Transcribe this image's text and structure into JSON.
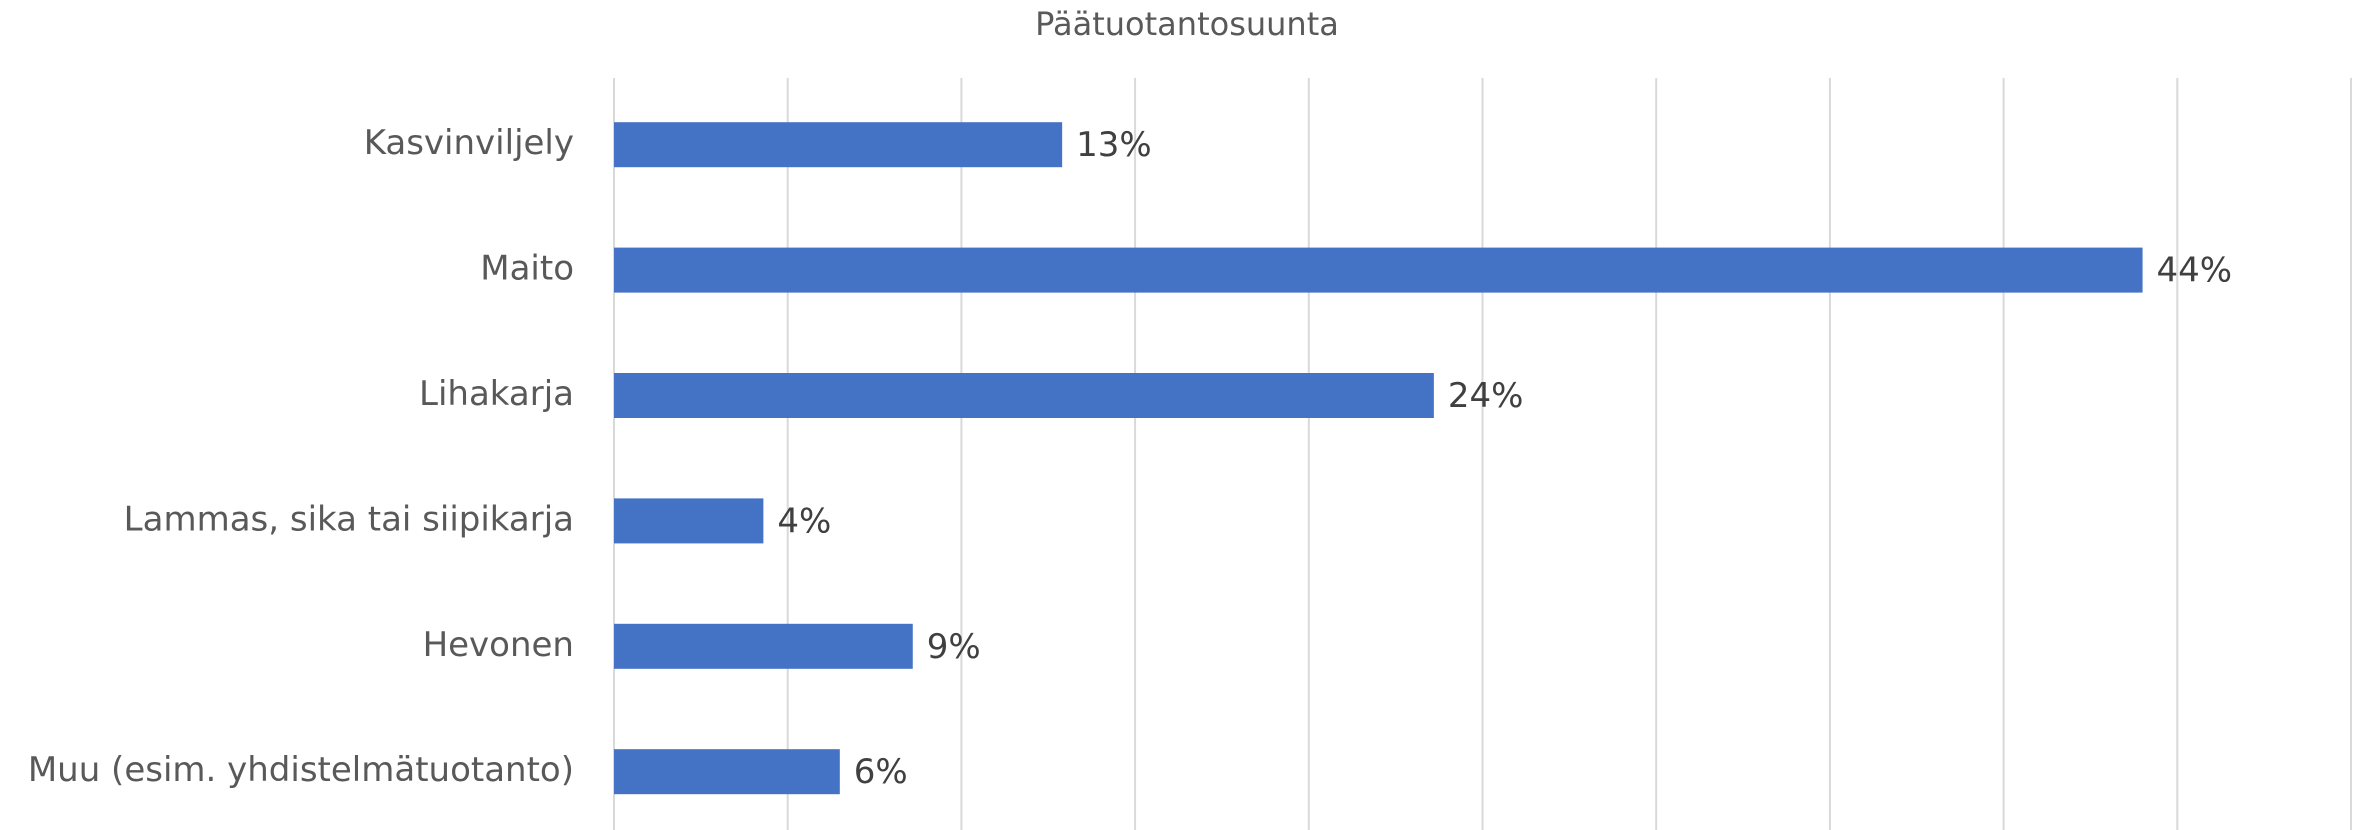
{
  "chart_data": {
    "type": "bar",
    "orientation": "horizontal",
    "title": "Päätuotantosuunta",
    "categories": [
      "Kasvinviljely",
      "Maito",
      "Lihakarja",
      "Lammas, sika tai siipikarja",
      "Hevonen",
      "Muu (esim. yhdistelmätuotanto)"
    ],
    "values": [
      12.9,
      44.0,
      23.6,
      4.3,
      8.6,
      6.5
    ],
    "value_labels": [
      "13%",
      "44%",
      "24%",
      "4%",
      "9%",
      "6%"
    ],
    "color": "#4472c4",
    "xlim": [
      0,
      50
    ],
    "xticks": [
      0,
      5,
      10,
      15,
      20,
      25,
      30,
      35,
      40,
      45,
      50
    ],
    "grid": true
  }
}
